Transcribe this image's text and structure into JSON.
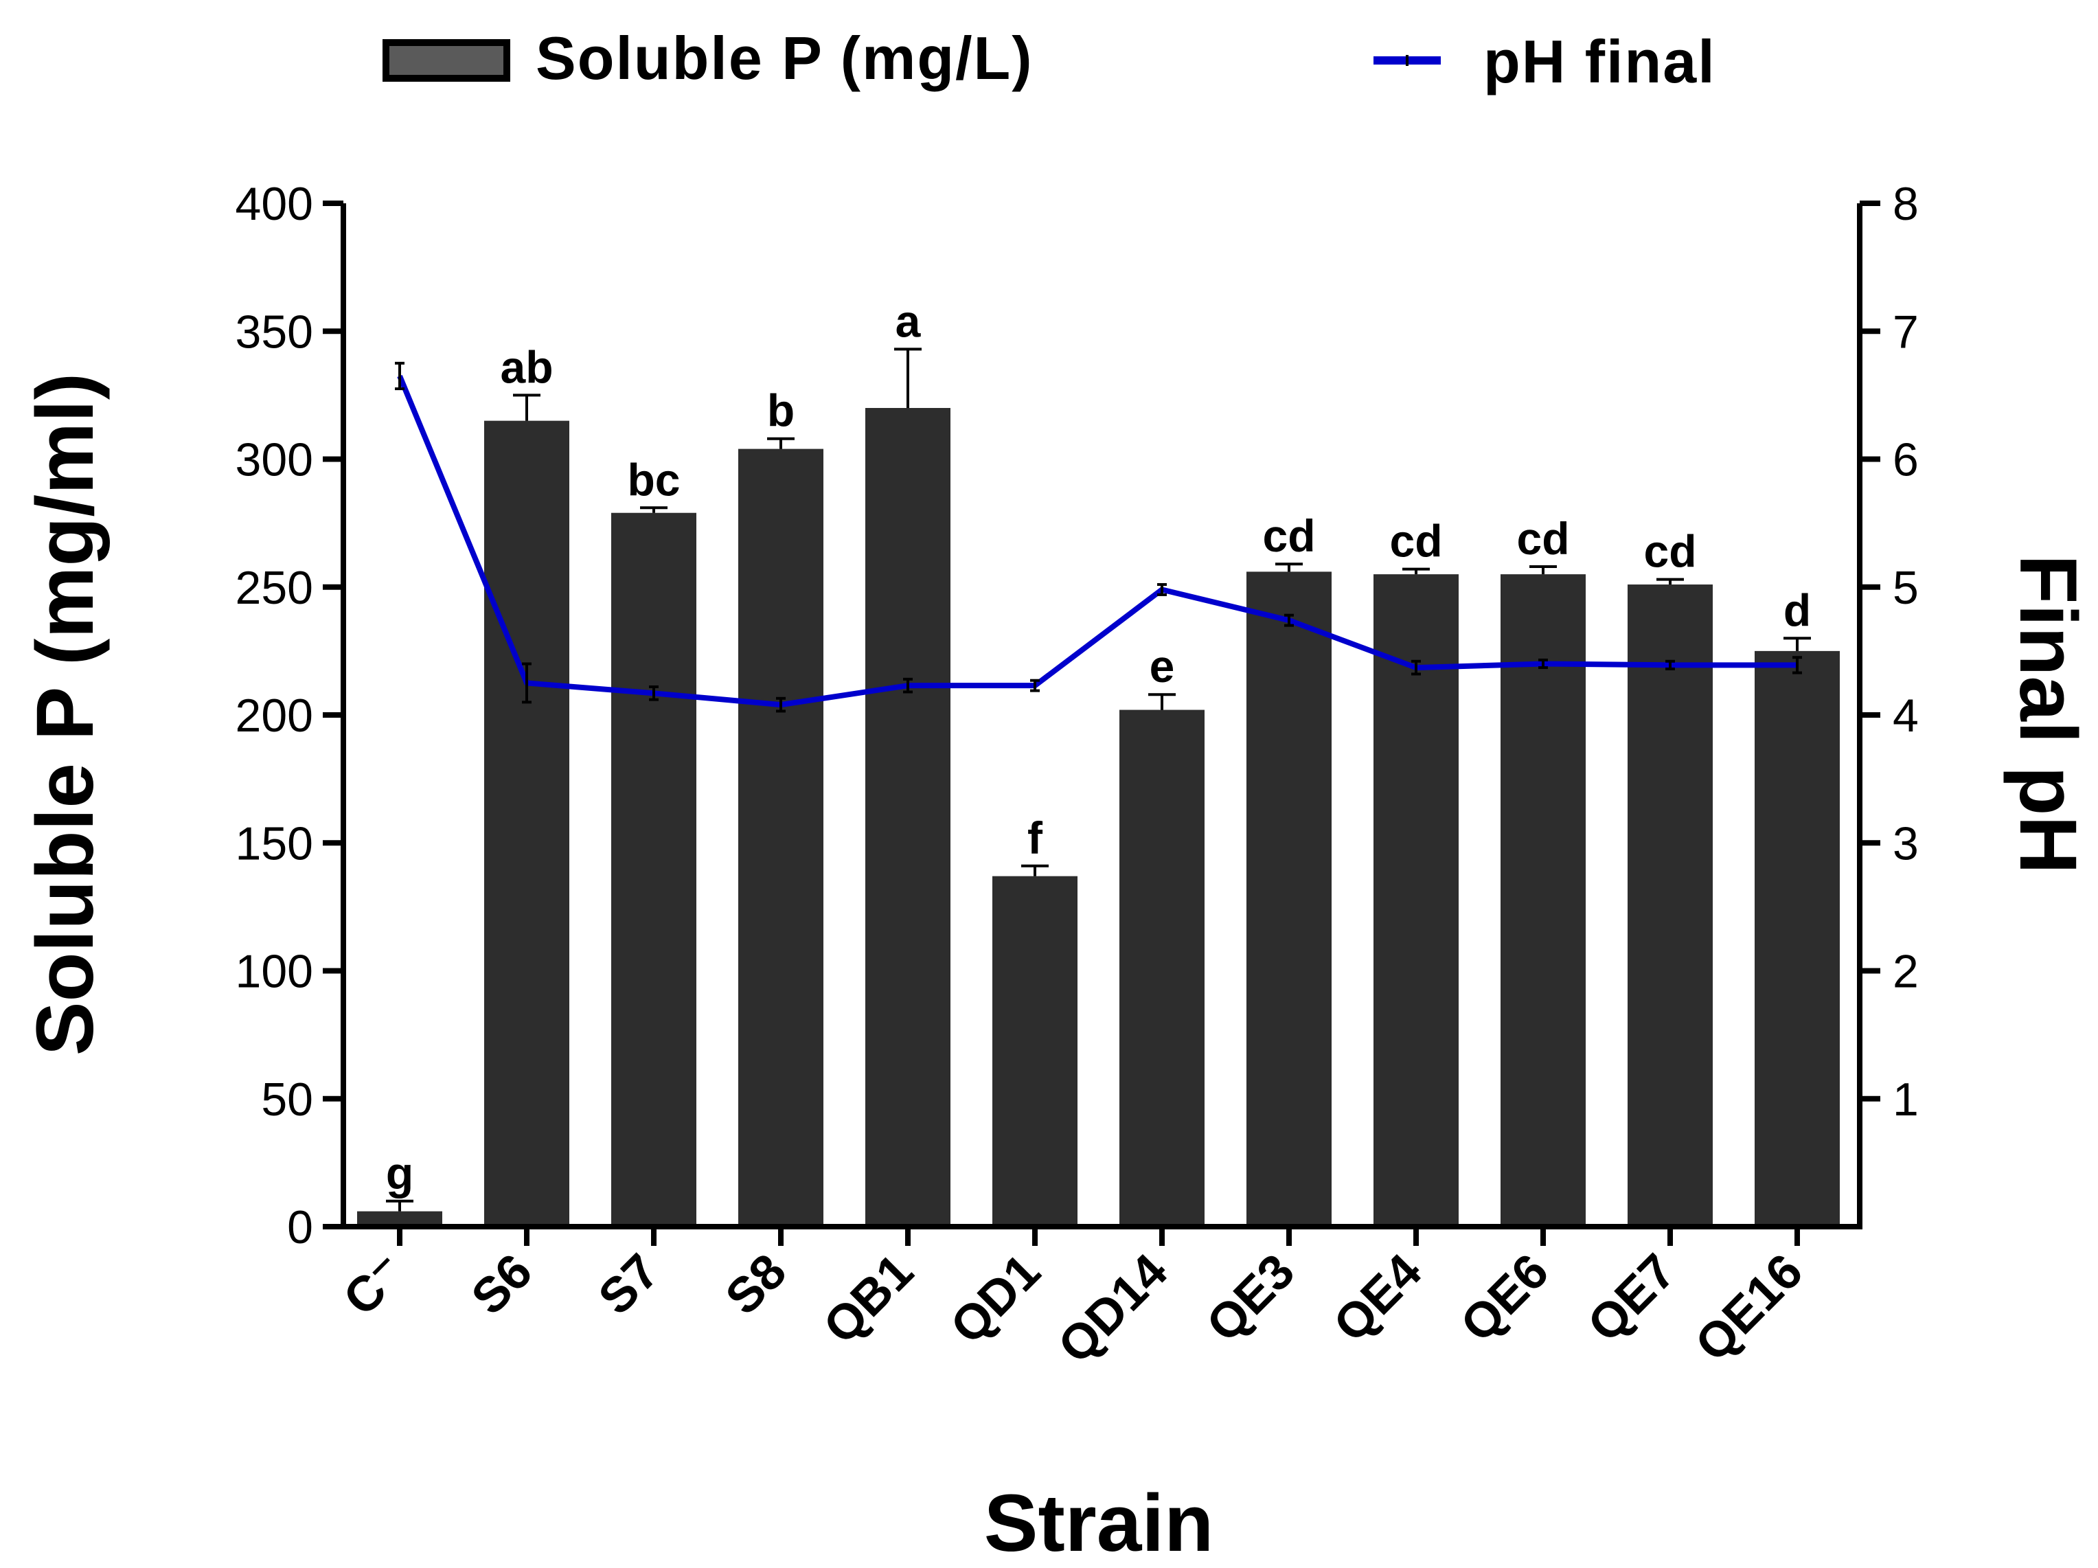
{
  "chart_data": {
    "type": "bar",
    "xlabel": "Strain",
    "ylabel": "Soluble P (mg/ml)",
    "y2label": "Final pH",
    "ylim": [
      0,
      400
    ],
    "yticks": [
      0,
      50,
      100,
      150,
      200,
      250,
      300,
      350,
      400
    ],
    "y2lim": [
      0,
      8
    ],
    "y2ticks": [
      1,
      2,
      3,
      4,
      5,
      6,
      7,
      8
    ],
    "legend": {
      "bar": "Soluble P (mg/L)",
      "line": "pH final",
      "placement": "top"
    },
    "categories": [
      "C⁻",
      "S6",
      "S7",
      "S8",
      "QB1",
      "QD1",
      "QD14",
      "QE3",
      "QE4",
      "QE6",
      "QE7",
      "QE16"
    ],
    "series": [
      {
        "name": "Soluble P (mg/L)",
        "type": "bar",
        "color": "#2d2d2d",
        "values": [
          6,
          315,
          279,
          304,
          320,
          137,
          202,
          256,
          255,
          255,
          251,
          225
        ],
        "errors": [
          4,
          10,
          2,
          4,
          23,
          4,
          6,
          3,
          2,
          3,
          2,
          5
        ],
        "significance": [
          "g",
          "ab",
          "bc",
          "b",
          "a",
          "f",
          "e",
          "cd",
          "cd",
          "cd",
          "cd",
          "d"
        ]
      },
      {
        "name": "pH final",
        "type": "line",
        "color": "#0000cc",
        "values": [
          6.65,
          4.25,
          4.17,
          4.08,
          4.23,
          4.23,
          4.98,
          4.74,
          4.37,
          4.4,
          4.39,
          4.39
        ],
        "errors": [
          0.1,
          0.15,
          0.05,
          0.05,
          0.05,
          0.04,
          0.04,
          0.04,
          0.05,
          0.03,
          0.03,
          0.06
        ]
      }
    ]
  }
}
